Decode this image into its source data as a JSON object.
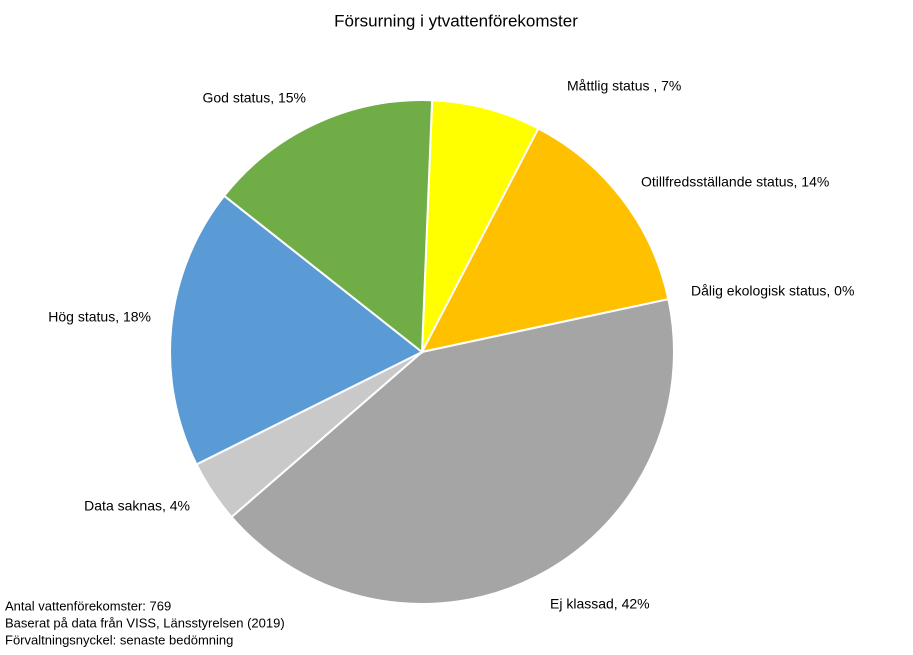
{
  "chart_data": {
    "type": "pie",
    "title": "Försurning i ytvattenförekomster",
    "values": [
      7,
      14,
      0,
      42,
      4,
      18,
      15
    ],
    "value_labels": [
      "Måttlig status , 7%",
      "Otillfredsställande status, 14%",
      "Dålig ekologisk status, 0%",
      "Ej klassad, 42%",
      "Data saknas, 4%",
      "Hög status, 18%",
      "God status, 15%"
    ],
    "colors": [
      "#ffff00",
      "#ffc000",
      "#ff0000",
      "#a5a5a5",
      "#c9c9c9",
      "#5b9bd5",
      "#70ad47"
    ],
    "notes": [
      "Antal vattenförekomster: 769",
      "Baserat på data från VISS, Länsstyrelsen (2019)",
      "Förvaltningsnyckel: senaste bedömning"
    ]
  }
}
